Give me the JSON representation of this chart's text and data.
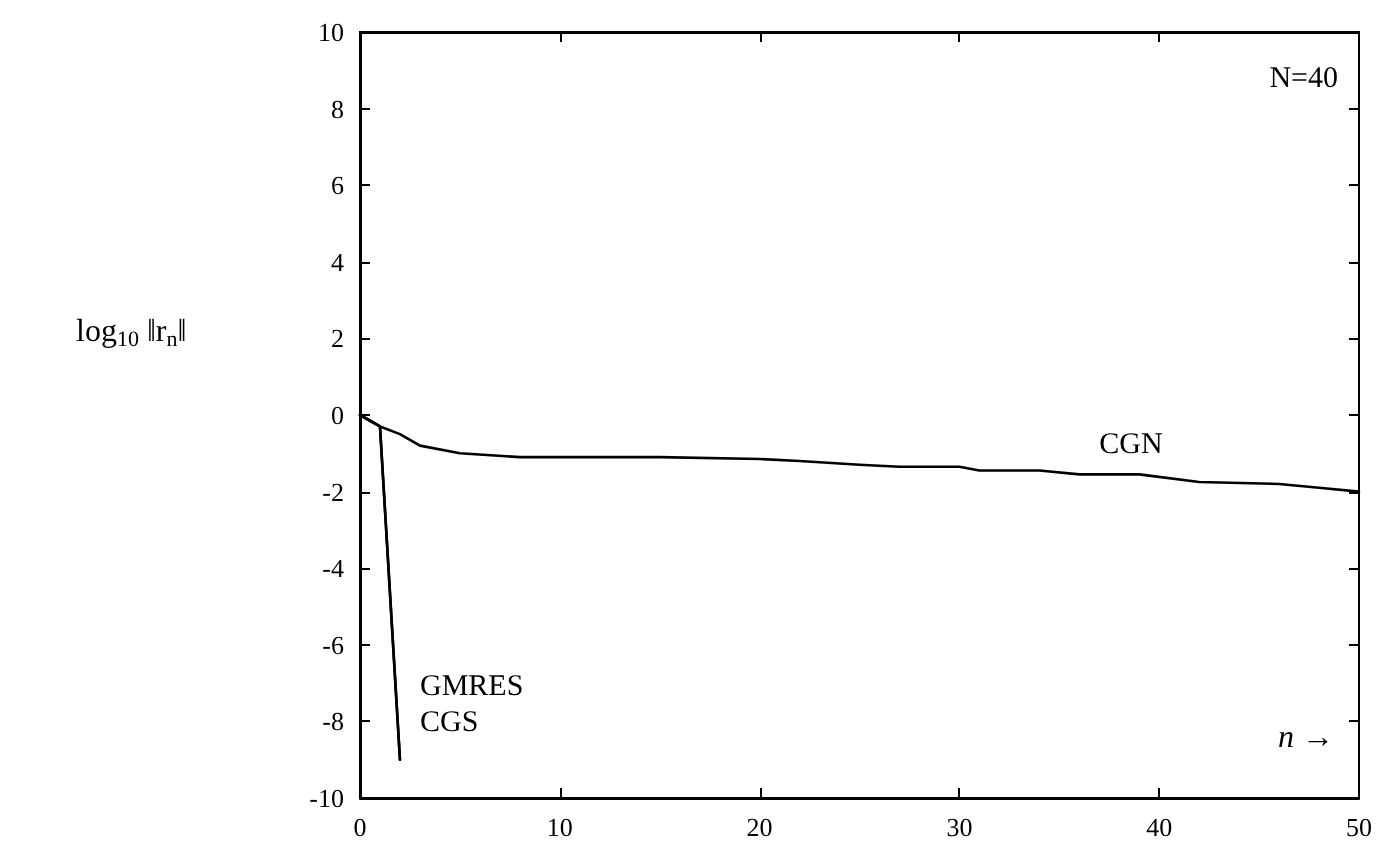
{
  "chart_data": {
    "type": "line",
    "ylabel": "log$_{10}$ ‖r$_{n}$‖",
    "xlabel": "n →",
    "annotations": [
      "N=40"
    ],
    "xlim": [
      0,
      50
    ],
    "xticks": [
      0,
      10,
      20,
      30,
      40,
      50
    ],
    "ylim": [
      -10,
      10
    ],
    "yticks": [
      -10,
      -8,
      -6,
      -4,
      -2,
      0,
      2,
      4,
      6,
      8,
      10
    ],
    "grid": false,
    "legend": false,
    "marker": "none",
    "line_style": "solid",
    "series": [
      {
        "name": "CGN",
        "color": "#000000",
        "x": [
          0,
          1,
          2,
          3,
          5,
          8,
          15,
          20,
          22,
          25,
          27,
          30,
          31,
          34,
          36,
          39,
          42,
          46,
          48,
          50
        ],
        "values": [
          0,
          -0.3,
          -0.5,
          -0.8,
          -1.0,
          -1.1,
          -1.1,
          -1.15,
          -1.2,
          -1.3,
          -1.35,
          -1.35,
          -1.45,
          -1.45,
          -1.55,
          -1.55,
          -1.75,
          -1.8,
          -1.9,
          -2.0
        ]
      },
      {
        "name": "GMRES",
        "color": "#000000",
        "x": [
          0,
          1,
          2
        ],
        "values": [
          0,
          -0.3,
          -9
        ]
      },
      {
        "name": "CGS",
        "color": "#000000",
        "x": [
          0,
          1,
          2
        ],
        "values": [
          0,
          -0.3,
          -9
        ]
      }
    ]
  }
}
